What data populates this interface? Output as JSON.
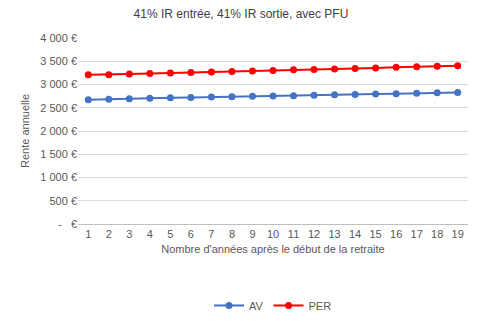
{
  "chart_data": {
    "type": "line",
    "title": "41% IR entrée, 41% IR sortie, avec PFU",
    "x_label": "Nombre d'années après le début de la retraite",
    "y_label": "Rente annuelle",
    "categories": [
      "1",
      "2",
      "3",
      "4",
      "5",
      "6",
      "7",
      "8",
      "9",
      "10",
      "11",
      "12",
      "13",
      "14",
      "15",
      "16",
      "17",
      "18",
      "19"
    ],
    "series": [
      {
        "name": "AV",
        "color": "#4472c4",
        "marker": "circle",
        "values": [
          2670,
          2685,
          2695,
          2705,
          2715,
          2720,
          2730,
          2735,
          2745,
          2755,
          2760,
          2770,
          2780,
          2785,
          2795,
          2800,
          2810,
          2820,
          2830
        ]
      },
      {
        "name": "PER",
        "color": "#ff0000",
        "marker": "circle",
        "values": [
          3210,
          3210,
          3225,
          3235,
          3245,
          3260,
          3270,
          3280,
          3290,
          3300,
          3315,
          3320,
          3335,
          3345,
          3355,
          3370,
          3380,
          3390,
          3405
        ]
      }
    ],
    "ylim": [
      0,
      4000
    ],
    "yticks": [
      {
        "value": 0,
        "label": "-   €"
      },
      {
        "value": 500,
        "label": "500 €"
      },
      {
        "value": 1000,
        "label": "1 000 €"
      },
      {
        "value": 1500,
        "label": "1 500 €"
      },
      {
        "value": 2000,
        "label": "2 000 €"
      },
      {
        "value": 2500,
        "label": "2 500 €"
      },
      {
        "value": 3000,
        "label": "3 000 €"
      },
      {
        "value": 3500,
        "label": "3 500 €"
      },
      {
        "value": 4000,
        "label": "4 000 €"
      }
    ],
    "grid": true,
    "legend": "bottom"
  }
}
